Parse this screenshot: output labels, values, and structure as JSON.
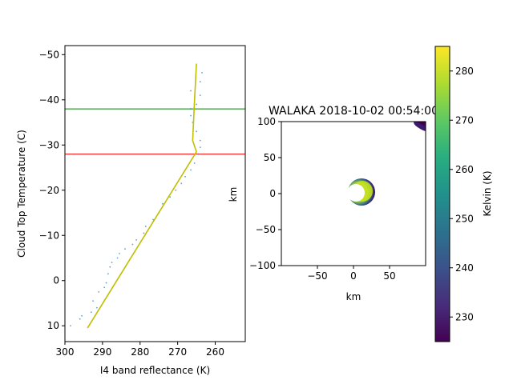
{
  "chart_data": [
    {
      "type": "scatter",
      "xlabel": "I4 band reflectance (K)",
      "ylabel": "Cloud Top Temperature (C)",
      "xlim": [
        300,
        252
      ],
      "ylim": [
        13.5,
        -52
      ],
      "xticks": [
        300,
        290,
        280,
        270,
        260
      ],
      "yticks": [
        10,
        0,
        -10,
        -20,
        -30,
        -40,
        -50
      ],
      "hlines": [
        {
          "y": -38,
          "color": "#008000"
        },
        {
          "y": -28,
          "color": "#ff0000"
        }
      ],
      "fit_line": {
        "color": "#bfbf00",
        "x": [
          294,
          265,
          266,
          265.5,
          265
        ],
        "y": [
          10.5,
          -28.5,
          -31,
          -40,
          -48
        ]
      },
      "points": {
        "color": "#1f77b4",
        "x": [
          302,
          298.5,
          296,
          295.5,
          293,
          291.5,
          292.5,
          291,
          289.5,
          289,
          288.5,
          288,
          287.5,
          286,
          285.5,
          284,
          282,
          281,
          279,
          278.5,
          276.5,
          275,
          274,
          272,
          270.5,
          269,
          268,
          266.5,
          265.5,
          264.5,
          264,
          264,
          265,
          266,
          266.5,
          265,
          264,
          264,
          266.5,
          263.5,
          266.5
        ],
        "y": [
          10.8,
          10,
          8.5,
          7.8,
          7,
          6,
          4.5,
          2.5,
          1.5,
          0.5,
          -1.5,
          -3,
          -4,
          -5,
          -6,
          -7,
          -8,
          -9,
          -10.5,
          -12,
          -13.5,
          -15,
          -17,
          -18.5,
          -20,
          -21.5,
          -23,
          -24.5,
          -26,
          -28,
          -29.5,
          -31,
          -33,
          -35,
          -36.5,
          -39,
          -41,
          -44,
          -42,
          -46,
          -38
        ]
      }
    },
    {
      "type": "heatmap",
      "title": "WALAKA 2018-10-02 00:54:00",
      "xlabel": "km",
      "ylabel": "km",
      "xlim": [
        -100,
        100
      ],
      "ylim": [
        -100,
        100
      ],
      "xticks": [
        -50,
        0,
        50
      ],
      "yticks": [
        100,
        50,
        0,
        -50,
        -100
      ],
      "colorbar": {
        "label": "Kelvin (K)",
        "range": [
          225,
          285
        ],
        "ticks": [
          230,
          240,
          250,
          260,
          270,
          280
        ],
        "colormap": "viridis"
      }
    }
  ]
}
